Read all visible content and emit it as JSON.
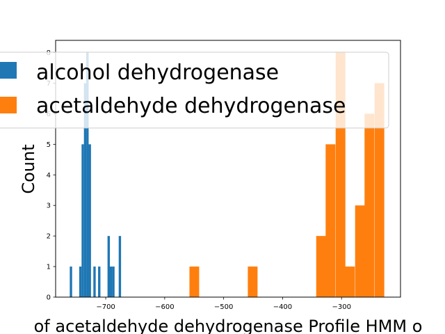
{
  "chart_data": {
    "type": "histogram",
    "xlabel": "of acetaldehyde dehydrogenase Profile HMM o",
    "ylabel": "Count",
    "xlim": [
      -785,
      -200
    ],
    "ylim": [
      0,
      8.4
    ],
    "x_ticks": [
      -700,
      -600,
      -500,
      -400,
      -300
    ],
    "x_tick_labels": [
      "−700",
      "−600",
      "−500",
      "−400",
      "−300"
    ],
    "y_ticks": [
      0,
      1,
      2,
      3,
      4,
      5,
      6,
      7,
      8
    ],
    "y_tick_labels": [
      "0",
      "1",
      "2",
      "3",
      "4",
      "5",
      "6",
      "7",
      "8"
    ],
    "legend_position": "upper center",
    "series": [
      {
        "name": "alcohol dehydrogenase",
        "color": "#1f77b4",
        "bin_width": 4,
        "bins": [
          {
            "x0": -761,
            "count": 1
          },
          {
            "x0": -745,
            "count": 1
          },
          {
            "x0": -741,
            "count": 5
          },
          {
            "x0": -737,
            "count": 7
          },
          {
            "x0": -733,
            "count": 8
          },
          {
            "x0": -729,
            "count": 5
          },
          {
            "x0": -721,
            "count": 1
          },
          {
            "x0": -713,
            "count": 1
          },
          {
            "x0": -697,
            "count": 2
          },
          {
            "x0": -693,
            "count": 1
          },
          {
            "x0": -689,
            "count": 1
          },
          {
            "x0": -678,
            "count": 2
          }
        ]
      },
      {
        "name": "acetaldehyde dehydrogenase",
        "color": "#ff7f0e",
        "bin_width": 16.5,
        "bins": [
          {
            "x0": -558,
            "count": 1
          },
          {
            "x0": -459,
            "count": 1
          },
          {
            "x0": -343,
            "count": 2
          },
          {
            "x0": -327,
            "count": 5
          },
          {
            "x0": -310,
            "count": 8
          },
          {
            "x0": -294,
            "count": 1
          },
          {
            "x0": -277,
            "count": 3
          },
          {
            "x0": -261,
            "count": 6
          },
          {
            "x0": -244,
            "count": 7
          }
        ]
      }
    ]
  }
}
